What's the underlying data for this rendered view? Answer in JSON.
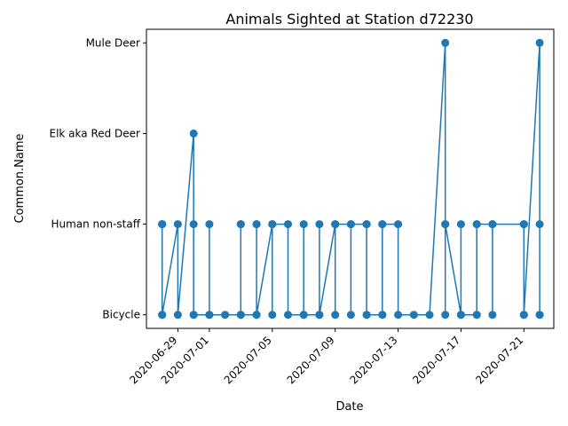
{
  "chart_data": {
    "type": "line",
    "title": "Animals Sighted at Station d72230",
    "xlabel": "Date",
    "ylabel": "Common.Name",
    "categories_y": [
      "Bicycle",
      "Human non-staff",
      "Elk aka Red Deer",
      "Mule Deer"
    ],
    "x_ticks": [
      "2020-06-29",
      "2020-07-01",
      "2020-07-05",
      "2020-07-09",
      "2020-07-13",
      "2020-07-17",
      "2020-07-21"
    ],
    "xlim": [
      "2020-06-27T00:00",
      "2020-07-22T21:36"
    ],
    "ylim": [
      -0.15,
      3.15
    ],
    "grid": false,
    "series_color": "#1f77b4",
    "points": [
      [
        "2020-06-28T00:00",
        "Human non-staff"
      ],
      [
        "2020-06-28T00:00",
        "Bicycle"
      ],
      [
        "2020-06-28T00:00",
        "Human non-staff"
      ],
      [
        "2020-06-28T00:00",
        "Bicycle"
      ],
      [
        "2020-06-28T00:00",
        "Human non-staff"
      ],
      [
        "2020-06-28T00:00",
        "Bicycle"
      ],
      [
        "2020-06-29T00:00",
        "Human non-staff"
      ],
      [
        "2020-06-29T00:00",
        "Bicycle"
      ],
      [
        "2020-06-30T00:00",
        "Elk aka Red Deer"
      ],
      [
        "2020-06-30T00:00",
        "Bicycle"
      ],
      [
        "2020-06-30T00:00",
        "Human non-staff"
      ],
      [
        "2020-06-30T00:00",
        "Bicycle"
      ],
      [
        "2020-07-01T00:00",
        "Bicycle"
      ],
      [
        "2020-07-01T00:00",
        "Human non-staff"
      ],
      [
        "2020-07-01T00:00",
        "Bicycle"
      ],
      [
        "2020-07-02T00:00",
        "Bicycle"
      ],
      [
        "2020-07-03T00:00",
        "Bicycle"
      ],
      [
        "2020-07-03T00:00",
        "Human non-staff"
      ],
      [
        "2020-07-03T00:00",
        "Bicycle"
      ],
      [
        "2020-07-03T00:00",
        "Human non-staff"
      ],
      [
        "2020-07-03T00:00",
        "Bicycle"
      ],
      [
        "2020-07-04T00:00",
        "Bicycle"
      ],
      [
        "2020-07-04T00:00",
        "Human non-staff"
      ],
      [
        "2020-07-04T00:00",
        "Bicycle"
      ],
      [
        "2020-07-04T00:00",
        "Human non-staff"
      ],
      [
        "2020-07-04T00:00",
        "Bicycle"
      ],
      [
        "2020-07-05T00:00",
        "Human non-staff"
      ],
      [
        "2020-07-05T00:00",
        "Bicycle"
      ],
      [
        "2020-07-05T00:00",
        "Human non-staff"
      ],
      [
        "2020-07-06T00:00",
        "Human non-staff"
      ],
      [
        "2020-07-06T00:00",
        "Bicycle"
      ],
      [
        "2020-07-07T00:00",
        "Bicycle"
      ],
      [
        "2020-07-07T00:00",
        "Human non-staff"
      ],
      [
        "2020-07-07T00:00",
        "Bicycle"
      ],
      [
        "2020-07-08T00:00",
        "Bicycle"
      ],
      [
        "2020-07-08T00:00",
        "Human non-staff"
      ],
      [
        "2020-07-08T00:00",
        "Bicycle"
      ],
      [
        "2020-07-09T00:00",
        "Human non-staff"
      ],
      [
        "2020-07-09T00:00",
        "Bicycle"
      ],
      [
        "2020-07-09T00:00",
        "Human non-staff"
      ],
      [
        "2020-07-10T00:00",
        "Human non-staff"
      ],
      [
        "2020-07-10T00:00",
        "Bicycle"
      ],
      [
        "2020-07-10T00:00",
        "Human non-staff"
      ],
      [
        "2020-07-11T00:00",
        "Human non-staff"
      ],
      [
        "2020-07-11T00:00",
        "Bicycle"
      ],
      [
        "2020-07-11T00:00",
        "Human non-staff"
      ],
      [
        "2020-07-11T00:00",
        "Bicycle"
      ],
      [
        "2020-07-12T00:00",
        "Bicycle"
      ],
      [
        "2020-07-12T00:00",
        "Human non-staff"
      ],
      [
        "2020-07-12T00:00",
        "Bicycle"
      ],
      [
        "2020-07-12T00:00",
        "Human non-staff"
      ],
      [
        "2020-07-13T00:00",
        "Human non-staff"
      ],
      [
        "2020-07-13T00:00",
        "Bicycle"
      ],
      [
        "2020-07-14T00:00",
        "Bicycle"
      ],
      [
        "2020-07-15T00:00",
        "Bicycle"
      ],
      [
        "2020-07-16T00:00",
        "Mule Deer"
      ],
      [
        "2020-07-16T00:00",
        "Human non-staff"
      ],
      [
        "2020-07-16T00:00",
        "Bicycle"
      ],
      [
        "2020-07-16T00:00",
        "Human non-staff"
      ],
      [
        "2020-07-17T00:00",
        "Bicycle"
      ],
      [
        "2020-07-17T00:00",
        "Human non-staff"
      ],
      [
        "2020-07-17T00:00",
        "Bicycle"
      ],
      [
        "2020-07-18T00:00",
        "Bicycle"
      ],
      [
        "2020-07-18T00:00",
        "Human non-staff"
      ],
      [
        "2020-07-18T00:00",
        "Bicycle"
      ],
      [
        "2020-07-18T00:00",
        "Human non-staff"
      ],
      [
        "2020-07-19T00:00",
        "Human non-staff"
      ],
      [
        "2020-07-19T00:00",
        "Bicycle"
      ],
      [
        "2020-07-19T00:00",
        "Human non-staff"
      ],
      [
        "2020-07-21T00:00",
        "Human non-staff"
      ],
      [
        "2020-07-21T00:00",
        "Bicycle"
      ],
      [
        "2020-07-21T00:00",
        "Human non-staff"
      ],
      [
        "2020-07-21T00:00",
        "Bicycle"
      ],
      [
        "2020-07-22T00:00",
        "Mule Deer"
      ],
      [
        "2020-07-22T00:00",
        "Bicycle"
      ],
      [
        "2020-07-22T00:00",
        "Human non-staff"
      ],
      [
        "2020-07-22T00:00",
        "Bicycle"
      ]
    ]
  }
}
